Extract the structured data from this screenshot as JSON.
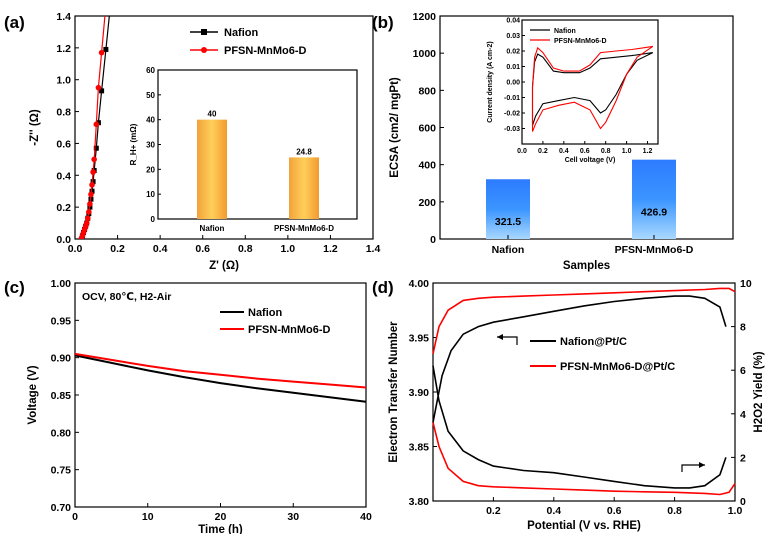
{
  "chart_data": [
    {
      "panel": "(a)",
      "type": "scatter",
      "xlabel": "Z' (Ω)",
      "ylabel": "-Z'' (Ω)",
      "xlim": [
        0.0,
        1.4
      ],
      "ylim": [
        0.0,
        1.4
      ],
      "xticks": [
        "0.0",
        "0.2",
        "0.4",
        "0.6",
        "0.8",
        "1.0",
        "1.2",
        "1.4"
      ],
      "yticks": [
        "0.0",
        "0.2",
        "0.4",
        "0.6",
        "0.8",
        "1.0",
        "1.2",
        "1.4"
      ],
      "legend": [
        "Nafion",
        "PFSN-MnMo6-D"
      ],
      "series": [
        {
          "name": "Nafion",
          "color": "#000000",
          "marker": "square",
          "x": [
            0.03,
            0.035,
            0.04,
            0.045,
            0.05,
            0.055,
            0.06,
            0.065,
            0.07,
            0.075,
            0.08,
            0.085,
            0.09,
            0.1,
            0.11,
            0.125,
            0.145
          ],
          "y": [
            0.0,
            0.02,
            0.04,
            0.06,
            0.08,
            0.1,
            0.13,
            0.16,
            0.2,
            0.25,
            0.3,
            0.36,
            0.43,
            0.57,
            0.73,
            0.93,
            1.19
          ]
        },
        {
          "name": "PFSN-MnMo6-D",
          "color": "#ff0000",
          "marker": "circle",
          "x": [
            0.03,
            0.035,
            0.04,
            0.045,
            0.05,
            0.055,
            0.06,
            0.065,
            0.07,
            0.075,
            0.08,
            0.085,
            0.09,
            0.1,
            0.11,
            0.125
          ],
          "y": [
            0.0,
            0.02,
            0.04,
            0.06,
            0.08,
            0.1,
            0.13,
            0.17,
            0.22,
            0.28,
            0.34,
            0.42,
            0.5,
            0.72,
            0.95,
            1.17
          ]
        }
      ],
      "inset": {
        "type": "bar",
        "ylabel": "R_H+ (mΩ)",
        "ylim": [
          0,
          60
        ],
        "yticks": [
          "0",
          "10",
          "20",
          "30",
          "40",
          "50",
          "60"
        ],
        "categories": [
          "Nafion",
          "PFSN-MnMo6-D"
        ],
        "values": [
          40,
          24.8
        ],
        "value_labels": [
          "40",
          "24.8"
        ]
      }
    },
    {
      "panel": "(b)",
      "type": "bar",
      "xlabel": "Samples",
      "ylabel": "ECSA (cm2/ mgPt)",
      "ylim": [
        0,
        1200
      ],
      "yticks": [
        "0",
        "200",
        "400",
        "600",
        "800",
        "1000",
        "1200"
      ],
      "categories": [
        "Nafion",
        "PFSN-MnMo6-D"
      ],
      "values": [
        321.5,
        426.9
      ],
      "value_labels": [
        "321.5",
        "426.9"
      ],
      "inset": {
        "type": "line",
        "xlabel": "Cell voltage (V)",
        "ylabel": "Current density (A cm-2)",
        "xlim": [
          0.0,
          1.3
        ],
        "ylim": [
          -0.04,
          0.04
        ],
        "xticks": [
          "0.0",
          "0.2",
          "0.4",
          "0.6",
          "0.8",
          "1.0",
          "1.2"
        ],
        "yticks": [
          "-0.03",
          "-0.02",
          "-0.01",
          "0.00",
          "0.01",
          "0.02",
          "0.03",
          "0.04"
        ],
        "legend": [
          "Nafion",
          "PFSN-MnMo6-D"
        ],
        "series": [
          {
            "name": "Nafion",
            "color": "#000000",
            "upper": {
              "x": [
                0.1,
                0.12,
                0.15,
                0.2,
                0.3,
                0.4,
                0.5,
                0.55,
                0.65,
                0.75,
                0.9,
                1.05,
                1.25
              ],
              "y": [
                -0.003,
                0.013,
                0.018,
                0.016,
                0.007,
                0.006,
                0.006,
                0.006,
                0.009,
                0.015,
                0.016,
                0.017,
                0.019
              ]
            },
            "lower": {
              "x": [
                1.25,
                1.1,
                1.0,
                0.9,
                0.8,
                0.75,
                0.65,
                0.5,
                0.35,
                0.2,
                0.13,
                0.1
              ],
              "y": [
                0.019,
                0.014,
                0.005,
                -0.008,
                -0.018,
                -0.02,
                -0.012,
                -0.01,
                -0.012,
                -0.014,
                -0.022,
                -0.028
              ]
            }
          },
          {
            "name": "PFSN-MnMo6-D",
            "color": "#ff0000",
            "upper": {
              "x": [
                0.1,
                0.12,
                0.15,
                0.2,
                0.3,
                0.4,
                0.5,
                0.55,
                0.65,
                0.75,
                0.9,
                1.05,
                1.25
              ],
              "y": [
                -0.003,
                0.016,
                0.022,
                0.019,
                0.009,
                0.007,
                0.007,
                0.007,
                0.011,
                0.019,
                0.02,
                0.021,
                0.023
              ]
            },
            "lower": {
              "x": [
                1.25,
                1.1,
                1.0,
                0.9,
                0.8,
                0.75,
                0.65,
                0.5,
                0.35,
                0.2,
                0.13,
                0.1
              ],
              "y": [
                0.023,
                0.016,
                0.005,
                -0.012,
                -0.026,
                -0.03,
                -0.018,
                -0.013,
                -0.015,
                -0.018,
                -0.027,
                -0.032
              ]
            }
          }
        ]
      }
    },
    {
      "panel": "(c)",
      "type": "line",
      "annotation": "OCV, 80℃, H2-Air",
      "xlabel": "Time (h)",
      "ylabel": "Voltage (V)",
      "xlim": [
        0,
        40
      ],
      "ylim": [
        0.7,
        1.0
      ],
      "xticks": [
        "0",
        "10",
        "20",
        "30",
        "40"
      ],
      "yticks": [
        "0.70",
        "0.75",
        "0.80",
        "0.85",
        "0.90",
        "0.95",
        "1.00"
      ],
      "legend": [
        "Nafion",
        "PFSN-MnMo6-D"
      ],
      "series": [
        {
          "name": "Nafion",
          "color": "#000000",
          "x": [
            0,
            5,
            10,
            15,
            20,
            25,
            30,
            35,
            40
          ],
          "y": [
            0.903,
            0.893,
            0.883,
            0.874,
            0.866,
            0.859,
            0.853,
            0.847,
            0.841
          ]
        },
        {
          "name": "PFSN-MnMo6-D",
          "color": "#ff0000",
          "x": [
            0,
            5,
            10,
            15,
            20,
            25,
            30,
            35,
            40
          ],
          "y": [
            0.905,
            0.897,
            0.889,
            0.882,
            0.877,
            0.872,
            0.868,
            0.864,
            0.86
          ]
        }
      ]
    },
    {
      "panel": "(d)",
      "type": "line",
      "xlabel": "Potential (V vs. RHE)",
      "ylabel": "Electron Transfer Number",
      "ylabel_right": "H2O2 Yield (%)",
      "xlim": [
        0.0,
        1.0
      ],
      "ylim": [
        3.8,
        4.0
      ],
      "ylim_right": [
        0,
        10
      ],
      "xticks": [
        "0.2",
        "0.4",
        "0.6",
        "0.8",
        "1.0"
      ],
      "yticks": [
        "3.80",
        "3.85",
        "3.90",
        "3.95",
        "4.00"
      ],
      "yticks_right": [
        "0",
        "2",
        "4",
        "6",
        "8",
        "10"
      ],
      "legend": [
        "Nafion@Pt/C",
        "PFSN-MnMo6-D@Pt/C"
      ],
      "series": [
        {
          "name": "Nafion@Pt/C",
          "color": "#000000",
          "n_x": [
            0.0,
            0.03,
            0.06,
            0.1,
            0.15,
            0.2,
            0.3,
            0.4,
            0.5,
            0.6,
            0.7,
            0.8,
            0.85,
            0.9,
            0.95,
            0.97
          ],
          "n_y": [
            3.872,
            3.915,
            3.938,
            3.953,
            3.96,
            3.964,
            3.969,
            3.974,
            3.979,
            3.983,
            3.986,
            3.988,
            3.988,
            3.986,
            3.978,
            3.96
          ],
          "h_x": [
            0.0,
            0.02,
            0.05,
            0.1,
            0.15,
            0.2,
            0.3,
            0.4,
            0.5,
            0.6,
            0.7,
            0.8,
            0.85,
            0.9,
            0.95,
            0.97
          ],
          "h_y": [
            6.2,
            4.6,
            3.2,
            2.3,
            1.9,
            1.6,
            1.4,
            1.3,
            1.1,
            0.9,
            0.7,
            0.6,
            0.6,
            0.7,
            1.2,
            2.0
          ]
        },
        {
          "name": "PFSN-MnMo6-D@Pt/C",
          "color": "#ff0000",
          "n_x": [
            0.0,
            0.02,
            0.05,
            0.1,
            0.15,
            0.2,
            0.3,
            0.4,
            0.5,
            0.6,
            0.7,
            0.8,
            0.9,
            0.95,
            0.98,
            1.0
          ],
          "n_y": [
            3.935,
            3.96,
            3.975,
            3.984,
            3.986,
            3.987,
            3.988,
            3.989,
            3.99,
            3.991,
            3.992,
            3.993,
            3.994,
            3.995,
            3.995,
            3.992
          ],
          "h_x": [
            0.0,
            0.02,
            0.05,
            0.1,
            0.15,
            0.2,
            0.3,
            0.4,
            0.5,
            0.6,
            0.7,
            0.8,
            0.9,
            0.95,
            0.98,
            1.0
          ],
          "h_y": [
            3.6,
            2.5,
            1.5,
            0.9,
            0.7,
            0.65,
            0.6,
            0.55,
            0.5,
            0.45,
            0.42,
            0.4,
            0.35,
            0.3,
            0.4,
            0.8
          ]
        }
      ]
    }
  ]
}
